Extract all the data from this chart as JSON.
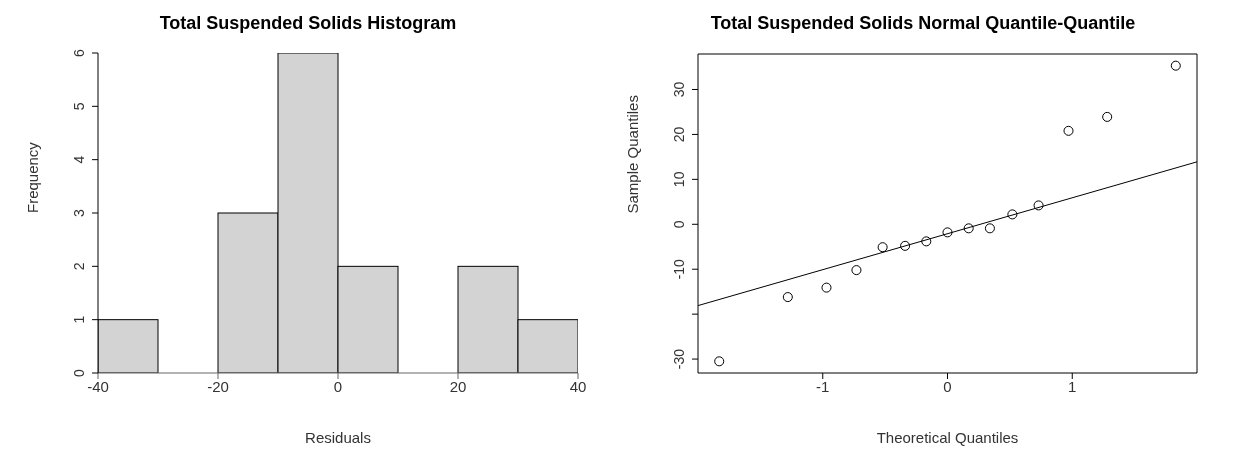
{
  "chart_data": [
    {
      "type": "histogram",
      "title": "Total Suspended Solids Histogram",
      "xlabel": "Residuals",
      "ylabel": "Frequency",
      "bins": [
        -40,
        -30,
        -20,
        -10,
        0,
        10,
        20,
        30,
        40
      ],
      "values": [
        1,
        0,
        3,
        6,
        2,
        0,
        2,
        1
      ],
      "color": "#d3d3d3",
      "xlim": [
        -40,
        40
      ],
      "xticks": [
        -40,
        -20,
        0,
        20,
        40
      ],
      "ylim": [
        0,
        6
      ],
      "yticks": [
        0,
        1,
        2,
        3,
        4,
        5,
        6
      ]
    },
    {
      "type": "scatter",
      "title": "Total Suspended Solids Normal Quantile-Quantile",
      "xlabel": "Theoretical Quantiles",
      "ylabel": "Sample Quantiles",
      "xlim": [
        -2,
        2
      ],
      "xticks": [
        -1,
        0,
        1
      ],
      "ylim": [
        -33.1,
        37.9
      ],
      "yticks": [
        -30,
        {
          "value": -20,
          "label": null
        },
        -10,
        0,
        10,
        20,
        30
      ],
      "series": [
        {
          "type": "scatter",
          "color": "#000000",
          "marker": "circle",
          "x": [
            -1.83,
            -1.28,
            -0.97,
            -0.73,
            -0.52,
            -0.34,
            -0.17,
            0,
            0.17,
            0.34,
            0.52,
            0.73,
            0.97,
            1.28,
            1.83
          ],
          "values": [
            -30.5,
            -16.2,
            -14.1,
            -10.2,
            -5.1,
            -4.8,
            -3.8,
            -1.8,
            -0.9,
            -0.9,
            2.2,
            4.2,
            20.8,
            23.9,
            35.3
          ]
        },
        {
          "type": "line",
          "color": "#000000",
          "x": [
            -2,
            2
          ],
          "values": [
            -18.1,
            13.9
          ]
        }
      ]
    }
  ]
}
